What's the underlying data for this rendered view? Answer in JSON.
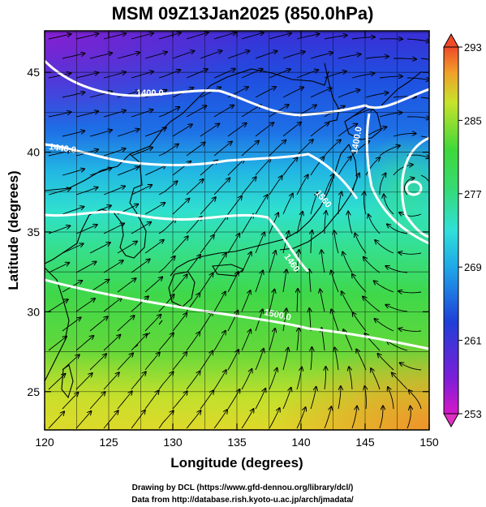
{
  "title": "MSM 09Z13Jan2025 (850.0hPa)",
  "xlabel": "Longitude (degrees)",
  "ylabel": "Latitude  (degrees)",
  "x_ticks": [
    120,
    125,
    130,
    135,
    140,
    145,
    150
  ],
  "y_ticks": [
    25,
    30,
    35,
    40,
    45
  ],
  "lon_range": [
    120,
    150
  ],
  "lat_range": [
    22.6,
    47.6
  ],
  "colorbar_ticks": [
    293,
    285,
    277,
    269,
    261,
    253
  ],
  "colorbar_range": [
    253,
    293
  ],
  "contour_labels": [
    "1400.0",
    "1440.0",
    "1400.0",
    "1500.0",
    "1460",
    "1560"
  ],
  "footer_line1": "Drawing by DCL (https://www.gfd-dennou.org/library/dcl/)",
  "footer_line2": "Data from http://database.rish.kyoto-u.ac.jp/arch/jmadata/",
  "colors": {
    "cold": "#8a1fd0",
    "blue": "#1f3fd8",
    "cyan": "#2fe0d8",
    "green": "#33d633",
    "yellow": "#e8e020",
    "orange": "#f08a2a"
  }
}
